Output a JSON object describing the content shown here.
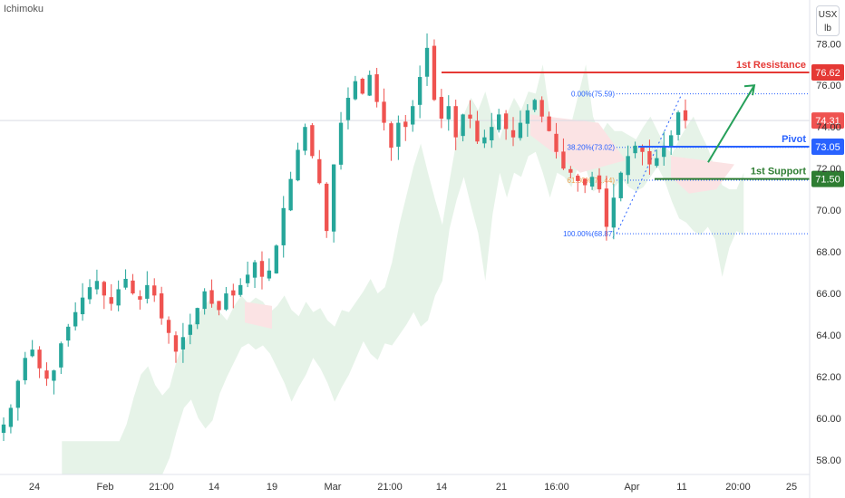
{
  "indicator": "Ichimoku",
  "unit": {
    "line1": "USX",
    "line2": "lb"
  },
  "colors": {
    "up": "#26a69a",
    "down": "#ef5350",
    "resistance": "#e53935",
    "pivot": "#2962ff",
    "support": "#2e7d32",
    "cloud_bull": "#e3f2e6",
    "cloud_bear": "#fbe3e4",
    "fib": "#2962ff",
    "arrow": "#26a05a"
  },
  "chart_data": {
    "type": "candlestick",
    "y_axis": {
      "ticks": [
        "58.00",
        "60.00",
        "62.00",
        "64.00",
        "66.00",
        "68.00",
        "70.00",
        "72.00",
        "74.00",
        "76.00",
        "78.00"
      ],
      "range": [
        57.3,
        80.1
      ]
    },
    "x_axis": {
      "ticks": [
        "24",
        "Feb",
        "21:00",
        "14",
        "19",
        "Mar",
        "21:00",
        "14",
        "21",
        "16:00",
        "Apr",
        "11",
        "20:00",
        "25"
      ]
    },
    "series_close_path": [
      59.7,
      60.5,
      61.8,
      62.9,
      63.3,
      62.4,
      61.9,
      62.3,
      63.6,
      64.4,
      65.1,
      65.8,
      66.3,
      66.6,
      65.9,
      65.5,
      66.2,
      66.7,
      66.0,
      65.7,
      66.4,
      65.9,
      64.8,
      64.1,
      63.2,
      63.9,
      64.5,
      65.3,
      66.1,
      65.5,
      65.2,
      66.0,
      65.9,
      66.4,
      66.9,
      67.5,
      66.8,
      67.1,
      68.3,
      70.1,
      71.5,
      72.9,
      74.0,
      72.6,
      71.3,
      69.0,
      72.2,
      74.2,
      75.4,
      76.2,
      75.6,
      76.5,
      75.2,
      74.2,
      73.0,
      74.2,
      74.0,
      75.0,
      76.4,
      77.8,
      75.3,
      74.4,
      75.0,
      73.5,
      74.6,
      74.4,
      73.3,
      73.5,
      74.0,
      74.6,
      73.9,
      73.5,
      74.2,
      74.8,
      75.3,
      74.5,
      73.8,
      72.8,
      72.0,
      71.8,
      71.4,
      71.2,
      71.6,
      71.0,
      69.2,
      70.6,
      71.8,
      72.6,
      73.1,
      72.8,
      72.2,
      72.5,
      73.1,
      73.6,
      74.7,
      74.3
    ],
    "levels": [
      {
        "name": "1st Resistance",
        "value": 76.62,
        "label": "76.62"
      },
      {
        "name": "Pivot",
        "value": 73.05,
        "label": "73.05"
      },
      {
        "name": "1st Support",
        "value": 71.5,
        "label": "71.50"
      }
    ],
    "current_price": {
      "value": 74.31,
      "label": "74.31"
    },
    "fibonacci": [
      {
        "label": "0.00%(75.59)",
        "value": 75.59
      },
      {
        "label": "38.20%(73.02)",
        "value": 73.02
      },
      {
        "label": "61.80%(71.44)",
        "value": 71.44
      },
      {
        "label": "100.00%(68.87)",
        "value": 68.87
      }
    ]
  }
}
